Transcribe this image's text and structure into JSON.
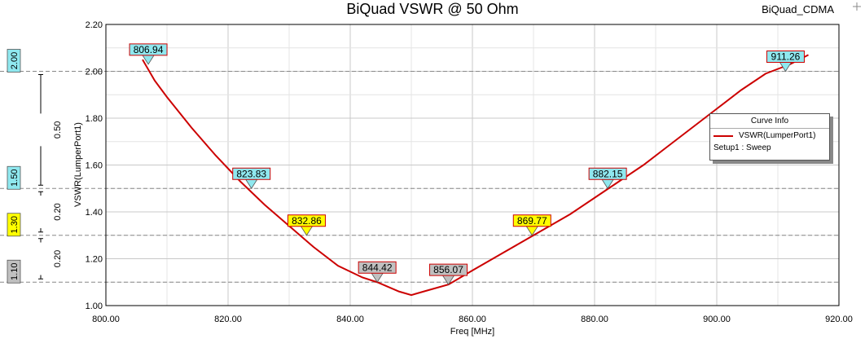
{
  "header": {
    "title": "BiQuad VSWR @ 50 Ohm",
    "project": "BiQuad_CDMA"
  },
  "legend": {
    "title": "Curve Info",
    "series_label": "VSWR(LumperPort1)",
    "source_label": "Setup1 : Sweep"
  },
  "colors": {
    "curve": "#cc0000",
    "grid": "#c8c8c8",
    "ref_line": "#888888",
    "marker_cyan": "#8fe8ef",
    "marker_yellow": "#ffff00",
    "marker_gray": "#c0c0c0"
  },
  "chart_data": {
    "type": "line",
    "title": "BiQuad VSWR @ 50 Ohm",
    "xlabel": "Freq [MHz]",
    "ylabel": "VSWR(LumperPort1)",
    "xlim": [
      800,
      920
    ],
    "ylim": [
      1.0,
      2.2
    ],
    "xticks": [
      "800.00",
      "820.00",
      "840.00",
      "860.00",
      "880.00",
      "900.00",
      "920.00"
    ],
    "yticks": [
      "1.00",
      "1.20",
      "1.40",
      "1.60",
      "1.80",
      "2.00",
      "2.20"
    ],
    "grid": true,
    "series": [
      {
        "name": "VSWR(LumperPort1)",
        "x": [
          806,
          808,
          810,
          814,
          818,
          822,
          826,
          830,
          834,
          838,
          842,
          844.4,
          848,
          850,
          852,
          856.1,
          860,
          864,
          868,
          872,
          876,
          880,
          884,
          888,
          892,
          896,
          900,
          904,
          908,
          912,
          915
        ],
        "y": [
          2.05,
          1.96,
          1.89,
          1.76,
          1.64,
          1.53,
          1.43,
          1.34,
          1.25,
          1.17,
          1.12,
          1.1,
          1.06,
          1.045,
          1.06,
          1.09,
          1.15,
          1.21,
          1.27,
          1.33,
          1.39,
          1.46,
          1.53,
          1.6,
          1.68,
          1.76,
          1.84,
          1.92,
          1.99,
          2.03,
          2.07
        ]
      }
    ],
    "markers": [
      {
        "label": "806.94",
        "x": 806.94,
        "y": 2.03,
        "color": "cyan"
      },
      {
        "label": "823.83",
        "x": 823.83,
        "y": 1.5,
        "color": "cyan"
      },
      {
        "label": "832.86",
        "x": 832.86,
        "y": 1.3,
        "color": "yellow"
      },
      {
        "label": "844.42",
        "x": 844.42,
        "y": 1.1,
        "color": "gray"
      },
      {
        "label": "856.07",
        "x": 856.07,
        "y": 1.09,
        "color": "gray"
      },
      {
        "label": "869.77",
        "x": 869.77,
        "y": 1.3,
        "color": "yellow"
      },
      {
        "label": "882.15",
        "x": 882.15,
        "y": 1.5,
        "color": "cyan"
      },
      {
        "label": "911.26",
        "x": 911.26,
        "y": 2.0,
        "color": "cyan"
      }
    ],
    "reference_lines": [
      {
        "label": "2.00",
        "y": 2.0,
        "color": "cyan"
      },
      {
        "label": "1.50",
        "y": 1.5,
        "color": "cyan"
      },
      {
        "label": "1.30",
        "y": 1.3,
        "color": "yellow"
      },
      {
        "label": "1.10",
        "y": 1.1,
        "color": "gray"
      }
    ],
    "spans": [
      {
        "label": "0.50",
        "from": 1.5,
        "to": 2.0
      },
      {
        "label": "0.20",
        "from": 1.3,
        "to": 1.5
      },
      {
        "label": "0.20",
        "from": 1.1,
        "to": 1.3
      }
    ]
  }
}
